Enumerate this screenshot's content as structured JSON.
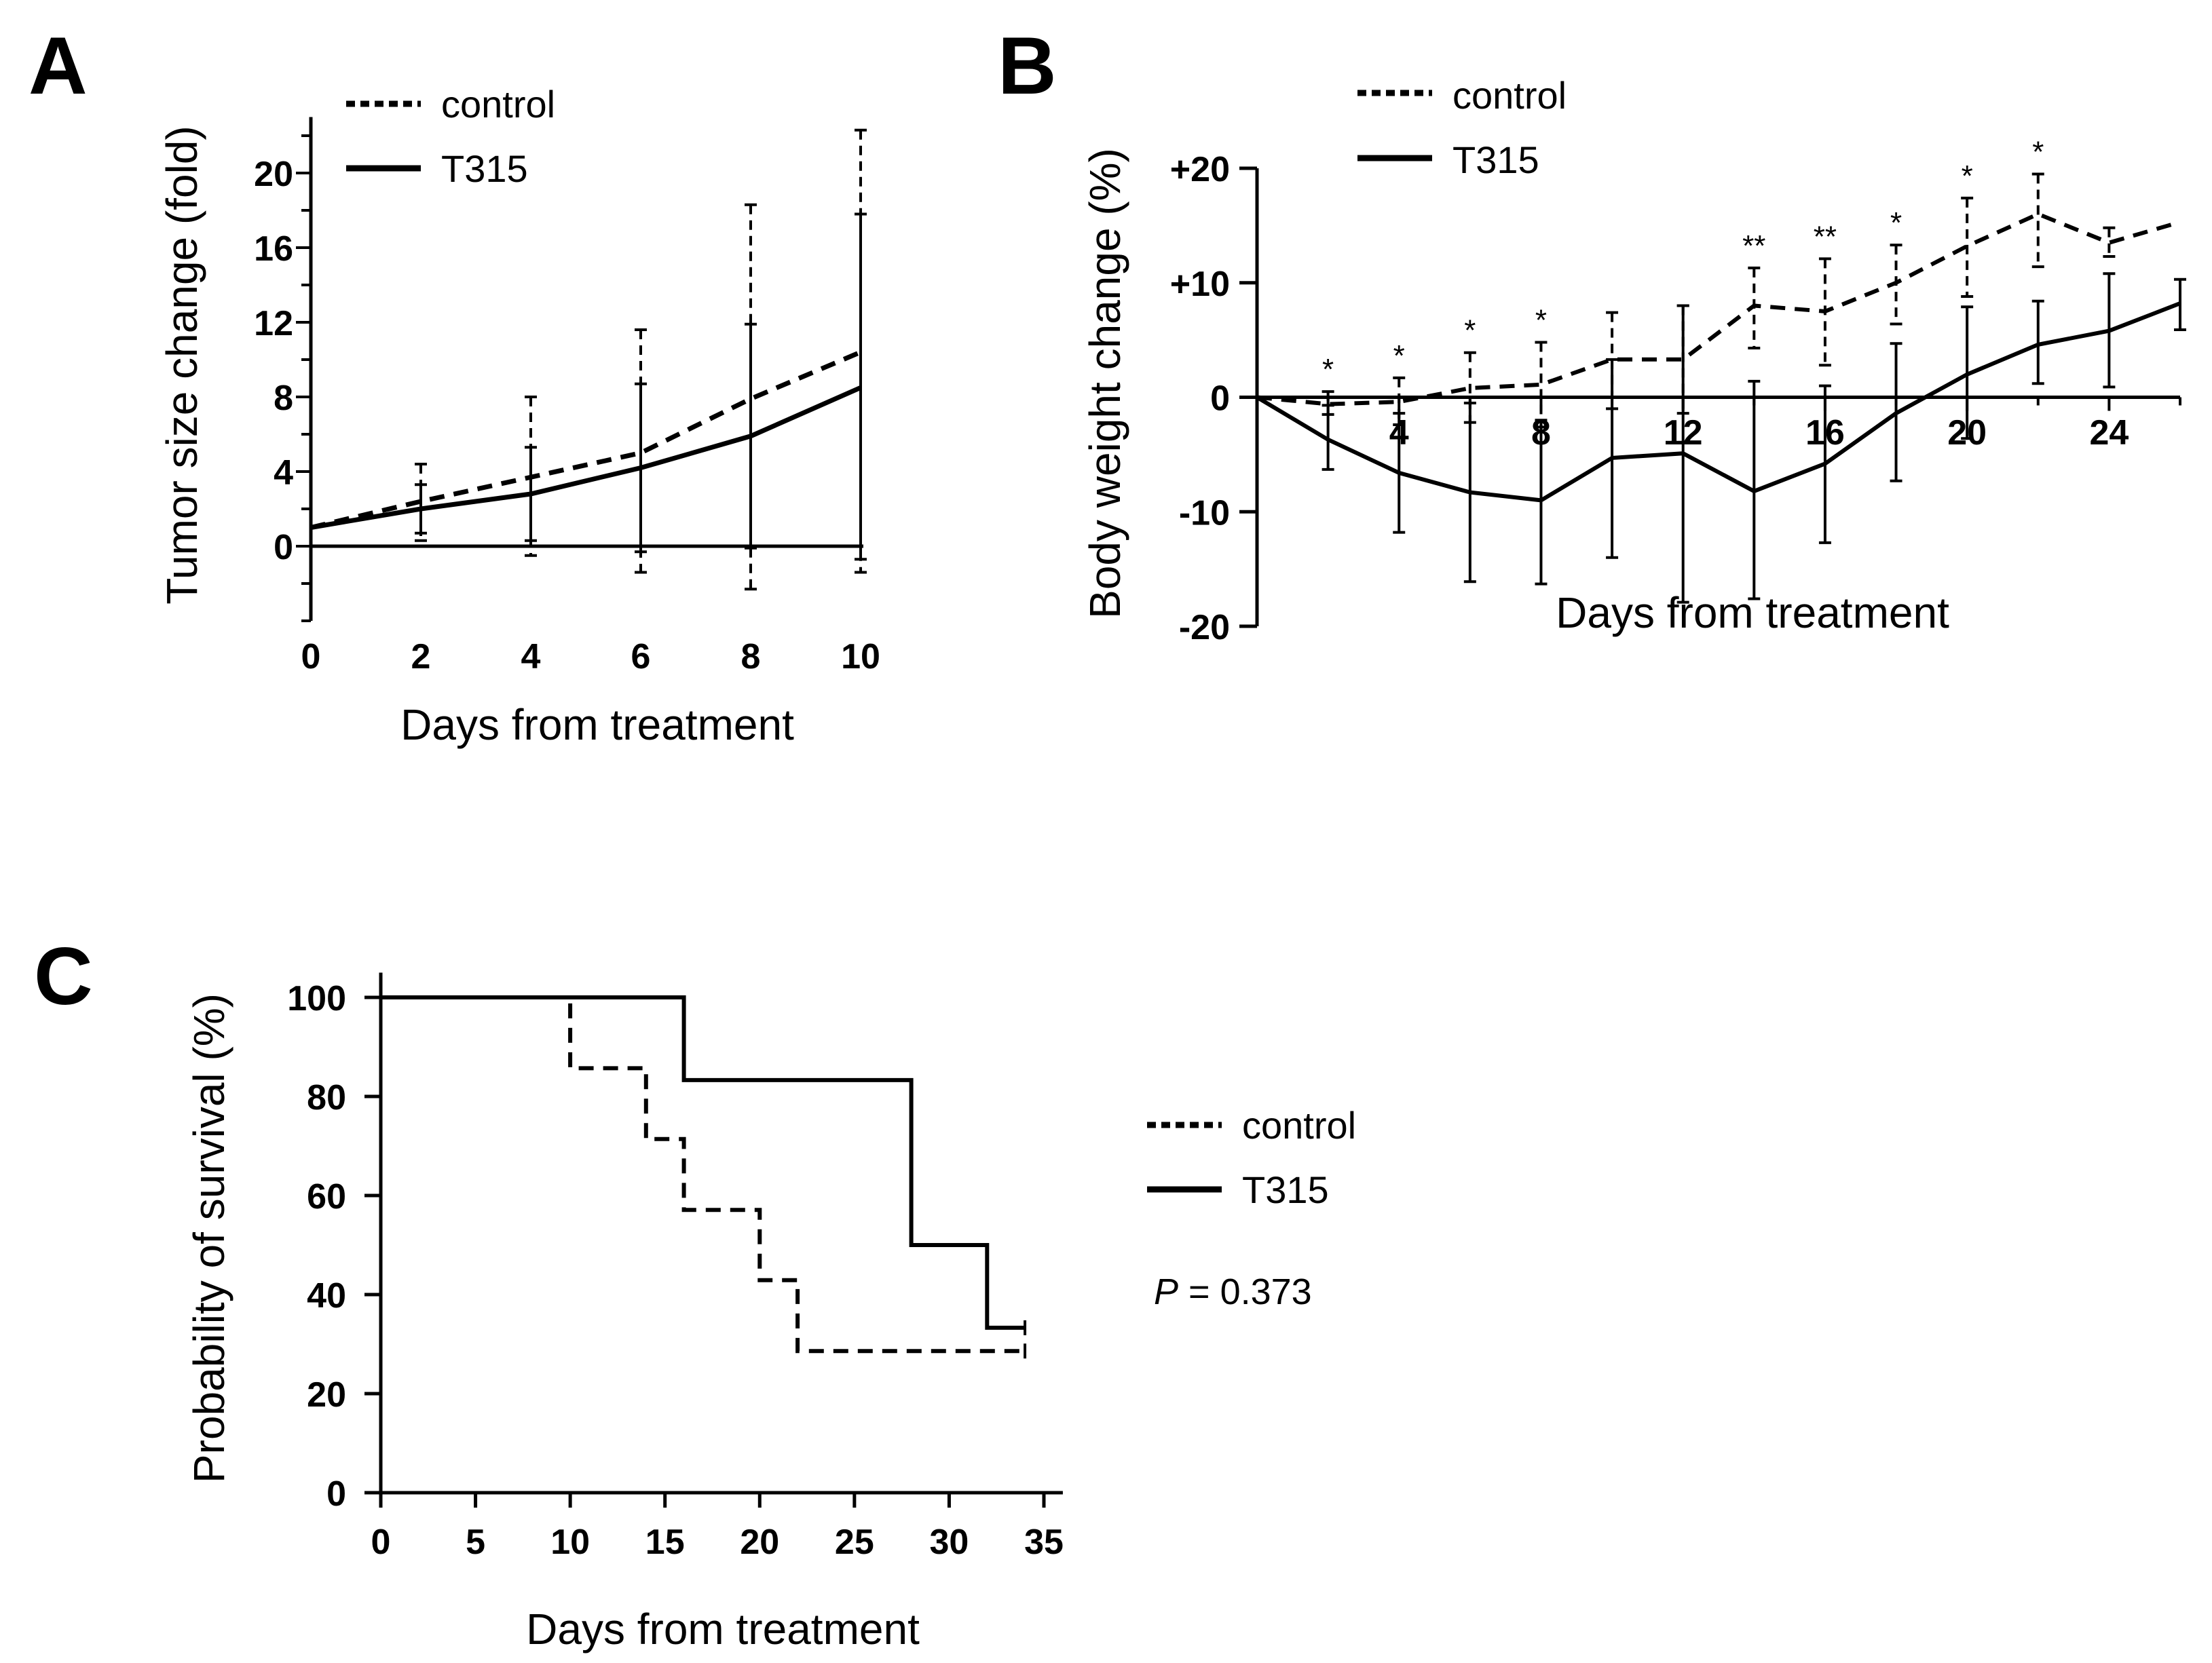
{
  "figure": {
    "panel_letters": [
      "A",
      "B",
      "C"
    ],
    "colors": {
      "ink": "#000000",
      "background": "#ffffff"
    },
    "line_styles": {
      "control": "dashed",
      "T315": "solid"
    }
  },
  "chart_data": [
    {
      "panel": "A",
      "type": "line",
      "title": "",
      "xlabel": "Days from treatment",
      "ylabel": "Tumor size change (fold)",
      "xlim": [
        0,
        10
      ],
      "ylim": [
        -4,
        23
      ],
      "x_ticks": [
        0,
        2,
        4,
        6,
        8,
        10
      ],
      "y_ticks": [
        0,
        4,
        8,
        12,
        16,
        20
      ],
      "legend": {
        "position": "top-left",
        "entries": [
          {
            "label": "control",
            "style": "dashed"
          },
          {
            "label": "T315",
            "style": "solid"
          }
        ]
      },
      "reference_line": {
        "y": 0
      },
      "series": [
        {
          "name": "control",
          "style": "dashed",
          "x": [
            0,
            2,
            4,
            6,
            8,
            10
          ],
          "y": [
            1.0,
            2.4,
            3.7,
            5.0,
            7.9,
            10.4
          ],
          "error_high": [
            1.0,
            4.4,
            8.0,
            11.6,
            18.3,
            22.3
          ],
          "error_low": [
            1.0,
            0.3,
            -0.5,
            -1.4,
            -2.3,
            -1.4
          ]
        },
        {
          "name": "T315",
          "style": "solid",
          "x": [
            0,
            2,
            4,
            6,
            8,
            10
          ],
          "y": [
            1.0,
            2.0,
            2.8,
            4.2,
            5.9,
            8.5
          ],
          "error_high": [
            1.0,
            3.3,
            5.3,
            8.7,
            11.9,
            17.8
          ],
          "error_low": [
            1.0,
            0.7,
            0.3,
            -0.3,
            -0.1,
            -0.7
          ]
        }
      ]
    },
    {
      "panel": "B",
      "type": "line",
      "title": "",
      "xlabel": "Days from treatment",
      "ylabel": "Body weight change (%)",
      "xlim": [
        0,
        26
      ],
      "ylim": [
        -20,
        20
      ],
      "x_ticks": [
        4,
        8,
        12,
        16,
        20,
        24
      ],
      "y_ticks": [
        "+20",
        "+10",
        "0",
        "-10",
        "-20"
      ],
      "y_tick_values": [
        20,
        10,
        0,
        -10,
        -20
      ],
      "legend": {
        "position": "top-center",
        "entries": [
          {
            "label": "control",
            "style": "dashed"
          },
          {
            "label": "T315",
            "style": "solid"
          }
        ]
      },
      "significance": [
        {
          "x": 2,
          "label": "*"
        },
        {
          "x": 4,
          "label": "*"
        },
        {
          "x": 6,
          "label": "*"
        },
        {
          "x": 8,
          "label": "*"
        },
        {
          "x": 14,
          "label": "**"
        },
        {
          "x": 16,
          "label": "**"
        },
        {
          "x": 18,
          "label": "*"
        },
        {
          "x": 20,
          "label": "*"
        },
        {
          "x": 22,
          "label": "*"
        }
      ],
      "series": [
        {
          "name": "control",
          "style": "dashed",
          "x": [
            0,
            2,
            4,
            6,
            8,
            10,
            12,
            14,
            16,
            18,
            20,
            22,
            24,
            26
          ],
          "y": [
            0,
            -0.6,
            -0.4,
            0.8,
            1.1,
            3.3,
            3.3,
            8.0,
            7.5,
            10.0,
            13.2,
            16.0,
            13.5,
            15.3
          ],
          "error_high": [
            0,
            0.5,
            1.7,
            3.9,
            4.8,
            7.4,
            8.0,
            11.3,
            12.1,
            13.3,
            17.4,
            19.5,
            14.8,
            15.3
          ],
          "error_low": [
            0,
            -1.5,
            -2.4,
            -2.2,
            -2.6,
            -1.0,
            -1.4,
            4.3,
            2.8,
            6.4,
            8.8,
            11.4,
            12.3,
            15.3
          ]
        },
        {
          "name": "T315",
          "style": "solid",
          "x": [
            0,
            2,
            4,
            6,
            8,
            10,
            12,
            14,
            16,
            18,
            20,
            22,
            24,
            26
          ],
          "y": [
            0,
            -3.7,
            -6.6,
            -8.3,
            -9.0,
            -5.3,
            -4.9,
            -8.2,
            -5.8,
            -1.4,
            2.0,
            4.6,
            5.8,
            8.2
          ],
          "error_high": [
            0,
            -0.7,
            -1.4,
            -0.5,
            -2.0,
            3.3,
            8.0,
            1.4,
            1.0,
            4.7,
            7.9,
            8.4,
            10.8,
            10.3
          ],
          "error_low": [
            0,
            -6.3,
            -11.8,
            -16.1,
            -16.3,
            -14.0,
            -17.9,
            -17.6,
            -12.7,
            -7.3,
            -3.6,
            1.2,
            0.9,
            5.9
          ]
        }
      ]
    },
    {
      "panel": "C",
      "type": "line",
      "title": "",
      "xlabel": "Days from treatment",
      "ylabel": "Probability of survival (%)",
      "xlim": [
        0,
        36
      ],
      "ylim": [
        0,
        105
      ],
      "x_ticks": [
        0,
        5,
        10,
        15,
        20,
        25,
        30,
        35
      ],
      "y_ticks": [
        0,
        20,
        40,
        60,
        80,
        100
      ],
      "legend": {
        "position": "right",
        "entries": [
          {
            "label": "control",
            "style": "dashed"
          },
          {
            "label": "T315",
            "style": "solid"
          }
        ]
      },
      "annotation": {
        "p_symbol": "P",
        "p_rest": " = 0.373"
      },
      "series": [
        {
          "name": "control",
          "style": "dashed",
          "step": true,
          "x": [
            0,
            10,
            14,
            16,
            20,
            22,
            34
          ],
          "y": [
            100,
            85.7,
            71.4,
            57.1,
            42.9,
            28.6,
            28.6
          ],
          "censored": [
            {
              "x": 34,
              "y": 28.6
            }
          ]
        },
        {
          "name": "T315",
          "style": "solid",
          "step": true,
          "x": [
            0,
            16,
            28,
            32,
            34
          ],
          "y": [
            100,
            83.3,
            50.0,
            33.3,
            33.3
          ],
          "censored": [
            {
              "x": 34,
              "y": 33.3
            }
          ]
        }
      ]
    }
  ]
}
